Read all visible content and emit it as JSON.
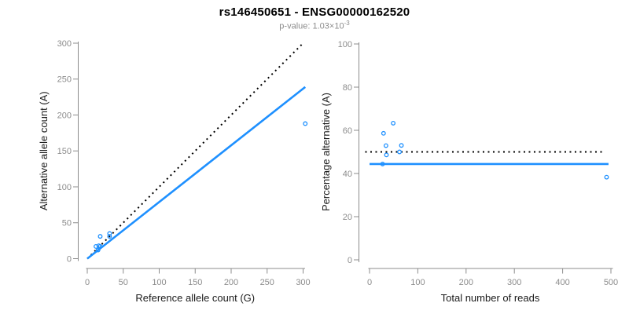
{
  "header": {
    "title": "rs146450651 - ENSG00000162520",
    "snp_id": "rs146450651",
    "gene_id": "ENSG00000162520",
    "p_value_base": "p-value: 1.03×10",
    "p_value_exponent": "-3"
  },
  "colors": {
    "point_blue": "#1E90FF",
    "line_blue": "#1E90FF",
    "dotted_black": "#000000",
    "axis_gray": "#8c8c8c",
    "tick_label_gray": "#8c8c8c",
    "axis_title_color": "#1a1a1a",
    "background": "#ffffff"
  },
  "chart_data": [
    {
      "type": "scatter",
      "title": "",
      "xlabel": "Reference allele count (G)",
      "ylabel": "Alternative allele count (A)",
      "xlim": [
        0,
        300
      ],
      "ylim": [
        0,
        300
      ],
      "xticks": [
        0,
        50,
        100,
        150,
        200,
        250,
        300
      ],
      "yticks": [
        0,
        50,
        100,
        150,
        200,
        250,
        300
      ],
      "grid": false,
      "legend": null,
      "point_style": "open-circle",
      "points": [
        [
          15,
          12
        ],
        [
          12,
          17
        ],
        [
          16,
          18
        ],
        [
          18,
          17
        ],
        [
          18,
          31
        ],
        [
          31,
          31
        ],
        [
          31,
          35
        ],
        [
          303,
          188
        ]
      ],
      "lines": [
        {
          "name": "expected-identity-line",
          "style": "dotted",
          "color": "#000000",
          "width": 2,
          "from": [
            0,
            0
          ],
          "to": [
            301,
            301
          ]
        },
        {
          "name": "fitted-ratio-line",
          "style": "solid",
          "color": "#1E90FF",
          "width": 2.6,
          "from": [
            0,
            0
          ],
          "to": [
            303,
            239
          ]
        }
      ]
    },
    {
      "type": "scatter",
      "title": "",
      "xlabel": "Total number of reads",
      "ylabel": "Percentage alternative (A)",
      "xlim": [
        0,
        500
      ],
      "ylim": [
        0,
        100
      ],
      "xticks": [
        0,
        100,
        200,
        300,
        400,
        500
      ],
      "yticks": [
        0,
        20,
        40,
        60,
        80,
        100
      ],
      "grid": false,
      "legend": null,
      "point_style": "open-circle",
      "points": [
        [
          27,
          44.4
        ],
        [
          29,
          58.6
        ],
        [
          34,
          52.9
        ],
        [
          35,
          48.6
        ],
        [
          49,
          63.3
        ],
        [
          62,
          50.0
        ],
        [
          66,
          53.0
        ],
        [
          491,
          38.3
        ]
      ],
      "lines": [
        {
          "name": "expected-50pct-line",
          "style": "dotted",
          "color": "#000000",
          "width": 2,
          "from": [
            -9,
            50
          ],
          "to": [
            488,
            50
          ]
        },
        {
          "name": "fitted-percent-line",
          "style": "solid",
          "color": "#1E90FF",
          "width": 2.6,
          "from": [
            0,
            44.4
          ],
          "to": [
            495,
            44.4
          ]
        }
      ]
    }
  ]
}
